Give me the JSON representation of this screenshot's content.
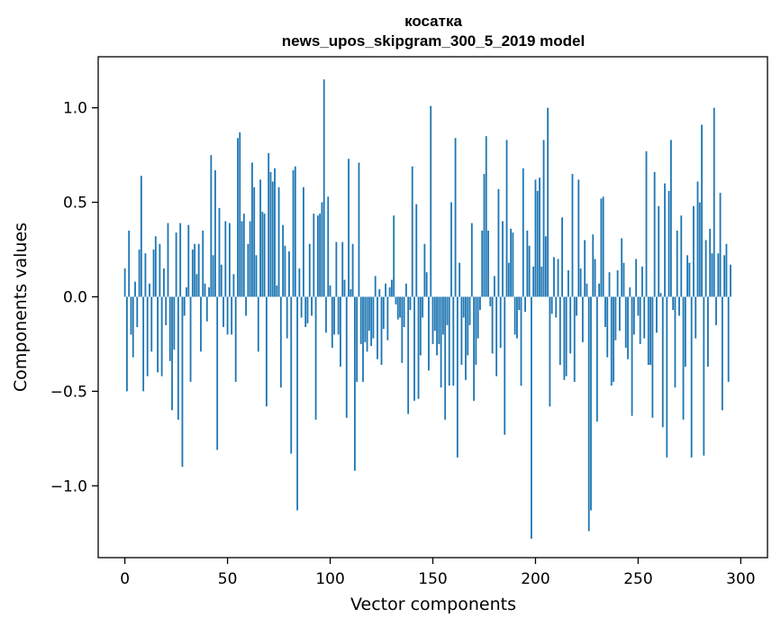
{
  "chart_data": {
    "type": "bar",
    "title": "косатка",
    "subtitle": "news_upos_skipgram_300_5_2019 model",
    "xlabel": "Vector components",
    "ylabel": "Components values",
    "xlim": [
      -13,
      313
    ],
    "ylim": [
      -1.38,
      1.27
    ],
    "xticks": [
      0,
      50,
      100,
      150,
      200,
      250,
      300
    ],
    "yticks": [
      -1.0,
      -0.5,
      0.0,
      0.5,
      1.0
    ],
    "ytick_labels": [
      "−1.0",
      "−0.5",
      "0.0",
      "0.5",
      "1.0"
    ],
    "bar_color": "#1f77b4",
    "grid": false,
    "values": [
      0.15,
      -0.5,
      0.35,
      -0.2,
      -0.32,
      0.08,
      -0.16,
      0.25,
      0.64,
      -0.5,
      0.23,
      -0.42,
      0.07,
      -0.29,
      0.25,
      0.32,
      -0.4,
      0.28,
      -0.42,
      0.15,
      -0.15,
      0.39,
      -0.34,
      -0.6,
      -0.28,
      0.34,
      -0.65,
      0.39,
      -0.9,
      -0.1,
      0.05,
      0.38,
      -0.45,
      0.25,
      0.28,
      0.12,
      0.28,
      -0.29,
      0.35,
      0.07,
      -0.13,
      0.05,
      0.75,
      0.22,
      0.67,
      -0.81,
      0.47,
      0.17,
      -0.16,
      0.4,
      -0.2,
      0.39,
      -0.2,
      0.12,
      -0.45,
      0.84,
      0.87,
      0.4,
      0.44,
      -0.1,
      0.28,
      0.4,
      0.71,
      0.58,
      0.22,
      -0.29,
      0.62,
      0.45,
      0.44,
      -0.58,
      0.76,
      0.66,
      0.61,
      0.68,
      0.06,
      0.58,
      -0.48,
      0.38,
      0.27,
      -0.22,
      0.24,
      -0.83,
      0.67,
      0.69,
      -1.13,
      0.15,
      -0.11,
      0.58,
      -0.16,
      -0.14,
      0.28,
      -0.1,
      0.44,
      -0.65,
      0.43,
      0.44,
      0.5,
      1.15,
      -0.19,
      0.53,
      0.06,
      -0.27,
      -0.2,
      0.29,
      -0.2,
      -0.37,
      0.29,
      0.09,
      -0.64,
      0.73,
      0.04,
      0.28,
      -0.92,
      -0.45,
      0.71,
      -0.25,
      -0.45,
      -0.24,
      -0.29,
      -0.18,
      -0.26,
      -0.22,
      0.11,
      -0.33,
      0.04,
      -0.36,
      -0.17,
      0.07,
      -0.23,
      0.05,
      0.09,
      0.43,
      -0.04,
      -0.12,
      -0.11,
      -0.35,
      -0.16,
      0.07,
      -0.62,
      -0.07,
      0.69,
      -0.55,
      0.49,
      -0.54,
      -0.31,
      -0.11,
      0.28,
      0.13,
      -0.39,
      1.01,
      -0.25,
      -0.18,
      -0.31,
      -0.25,
      -0.48,
      -0.2,
      -0.65,
      -0.15,
      -0.47,
      0.5,
      -0.47,
      0.84,
      -0.85,
      0.18,
      -0.36,
      -0.11,
      -0.44,
      -0.31,
      -0.15,
      0.39,
      -0.55,
      -0.36,
      -0.22,
      -0.07,
      0.35,
      0.65,
      0.85,
      0.35,
      -0.05,
      -0.3,
      0.11,
      -0.42,
      0.57,
      -0.27,
      0.4,
      -0.73,
      0.83,
      0.18,
      0.36,
      0.34,
      -0.2,
      -0.22,
      -0.07,
      -0.47,
      0.68,
      -0.08,
      0.35,
      0.27,
      -1.28,
      0.16,
      0.62,
      0.56,
      0.63,
      0.16,
      0.83,
      0.32,
      1.0,
      -0.58,
      -0.09,
      0.21,
      -0.11,
      0.2,
      -0.36,
      0.42,
      -0.44,
      -0.42,
      0.14,
      -0.3,
      0.65,
      -0.45,
      -0.1,
      0.62,
      0.15,
      -0.24,
      0.3,
      0.07,
      -1.24,
      -1.13,
      0.33,
      0.2,
      -0.66,
      0.07,
      0.52,
      0.53,
      -0.16,
      -0.32,
      0.13,
      -0.47,
      -0.45,
      -0.23,
      0.14,
      -0.18,
      0.31,
      0.18,
      -0.27,
      -0.33,
      0.05,
      -0.63,
      -0.2,
      0.2,
      -0.1,
      -0.25,
      0.16,
      -0.22,
      0.77,
      -0.36,
      -0.36,
      -0.64,
      0.66,
      -0.19,
      0.48,
      0.02,
      -0.69,
      0.6,
      -0.85,
      0.56,
      0.83,
      -0.07,
      -0.48,
      0.35,
      -0.1,
      0.43,
      -0.65,
      -0.37,
      0.22,
      0.18,
      -0.85,
      0.48,
      -0.22,
      0.61,
      0.5,
      0.91,
      -0.84,
      0.3,
      -0.37,
      0.36,
      0.23,
      1.0,
      -0.15,
      0.23,
      0.55,
      -0.6,
      0.22,
      0.28,
      -0.45,
      0.17
    ]
  }
}
